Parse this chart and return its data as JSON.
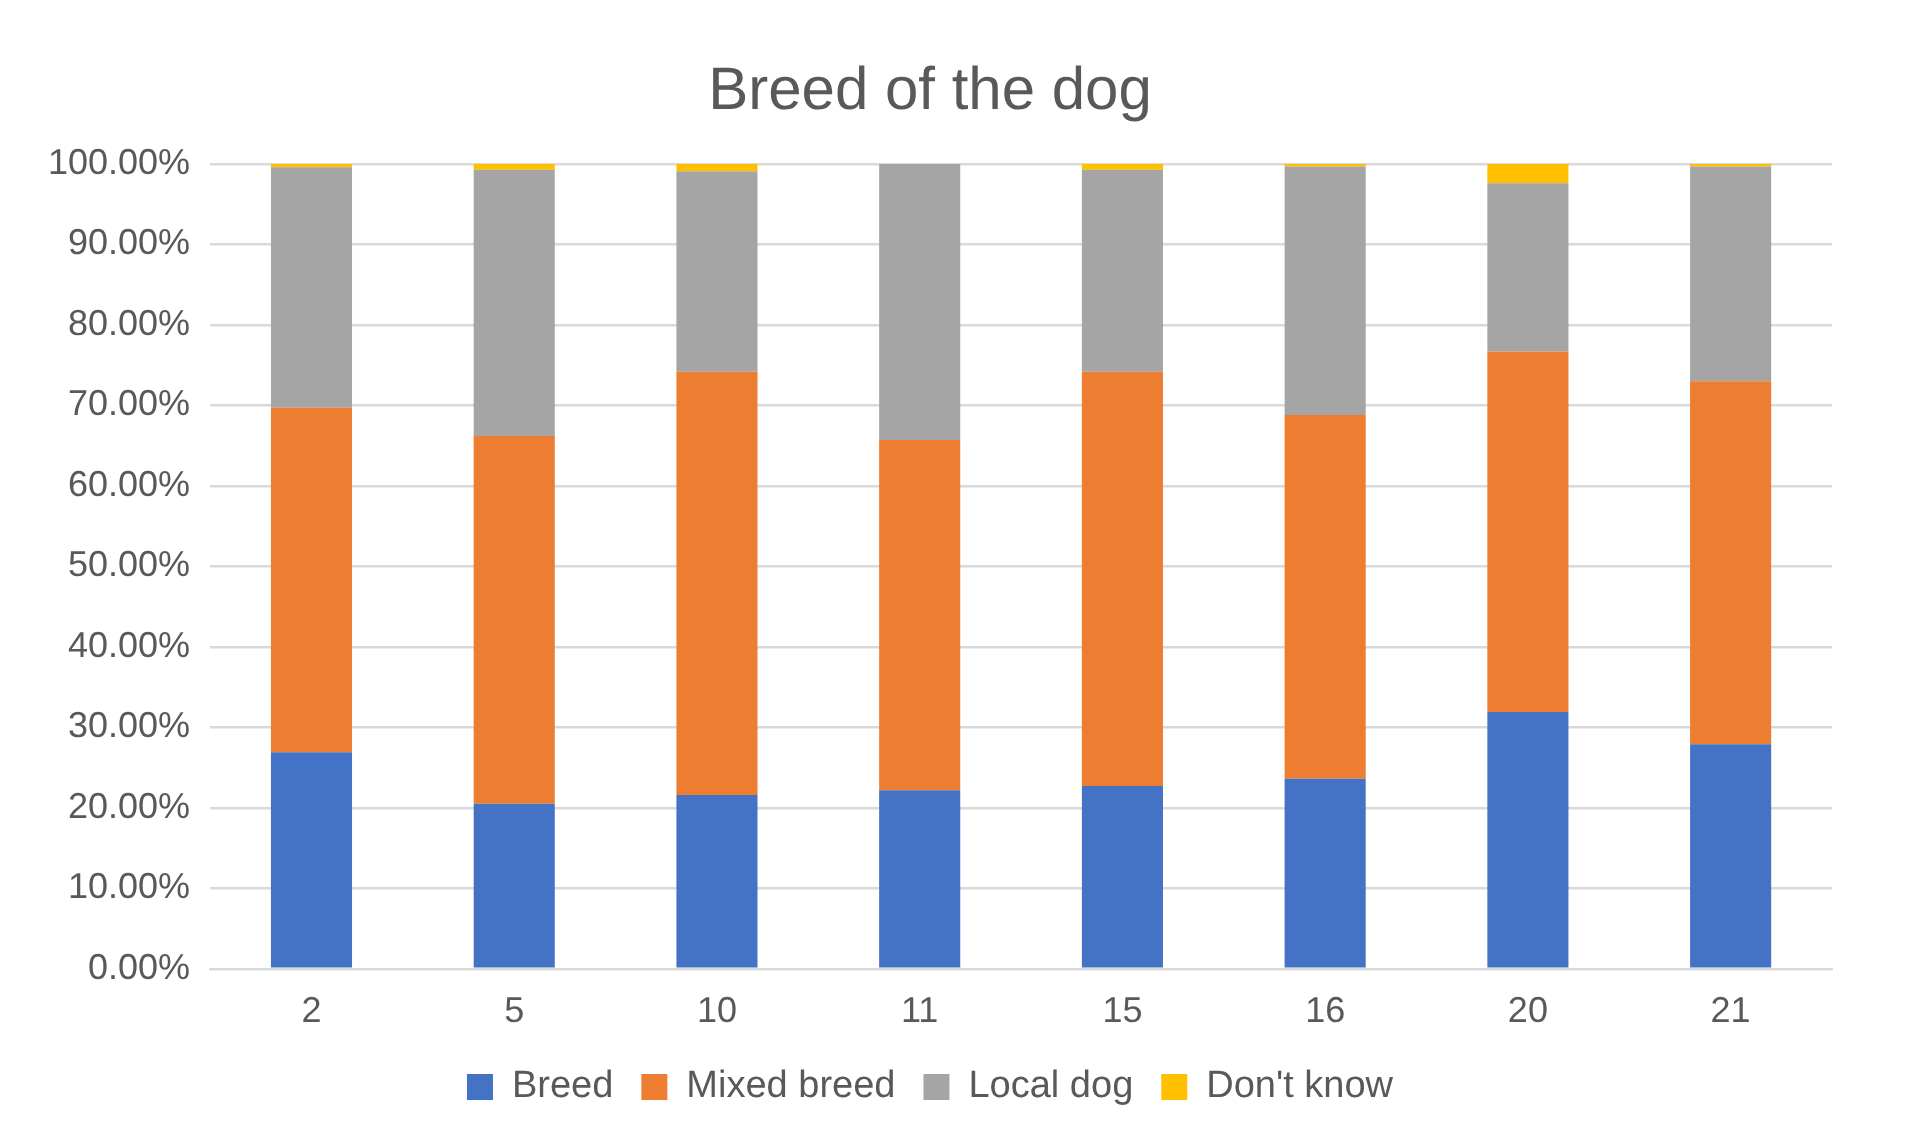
{
  "chart_data": {
    "type": "bar",
    "title": "Breed of the dog",
    "stacked": true,
    "categories": [
      "2",
      "5",
      "10",
      "11",
      "15",
      "16",
      "20",
      "21"
    ],
    "series": [
      {
        "name": "Breed",
        "color": "#4472c4",
        "values": [
          26.9,
          20.5,
          21.6,
          22.2,
          22.7,
          23.6,
          31.9,
          27.9
        ]
      },
      {
        "name": "Mixed breed",
        "color": "#ed7d31",
        "values": [
          42.8,
          45.7,
          52.6,
          43.5,
          51.5,
          45.2,
          44.8,
          45.1
        ]
      },
      {
        "name": "Local dog",
        "color": "#a5a5a5",
        "values": [
          29.9,
          33.1,
          24.9,
          34.3,
          25.1,
          30.9,
          20.9,
          26.7
        ]
      },
      {
        "name": "Don't know",
        "color": "#ffc000",
        "values": [
          0.4,
          0.7,
          0.9,
          0,
          0.7,
          0.3,
          2.4,
          0.3
        ]
      }
    ],
    "ylim": [
      0,
      100
    ],
    "yticks": [
      {
        "value": 0,
        "label": "0.00%"
      },
      {
        "value": 10,
        "label": "10.00%"
      },
      {
        "value": 20,
        "label": "20.00%"
      },
      {
        "value": 30,
        "label": "30.00%"
      },
      {
        "value": 40,
        "label": "40.00%"
      },
      {
        "value": 50,
        "label": "50.00%"
      },
      {
        "value": 60,
        "label": "60.00%"
      },
      {
        "value": 70,
        "label": "70.00%"
      },
      {
        "value": 80,
        "label": "80.00%"
      },
      {
        "value": 90,
        "label": "90.00%"
      },
      {
        "value": 100,
        "label": "100.00%"
      }
    ],
    "grid": "y",
    "legend": "bottom"
  }
}
